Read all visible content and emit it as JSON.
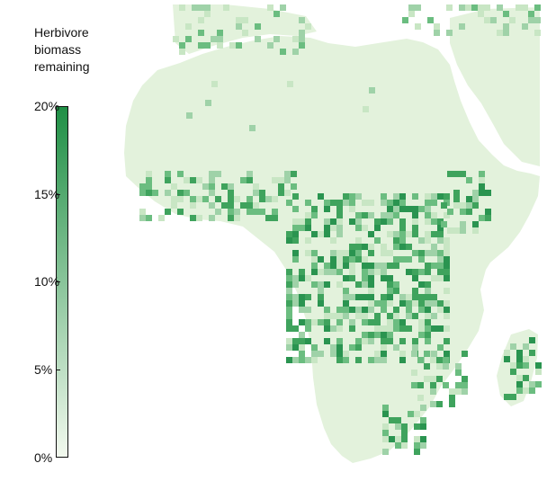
{
  "legend": {
    "title_lines": [
      "Herbivore",
      "biomass",
      "remaining"
    ],
    "ticks": [
      "20%",
      "15%",
      "10%",
      "5%",
      "0%"
    ],
    "color_low": "#f2f9ee",
    "color_high": "#1f8f45"
  },
  "map": {
    "region": "Africa",
    "base_color": "#e3f2dc",
    "hotspot_color": "#2e9a52",
    "mid_color": "#9fd2a8"
  }
}
